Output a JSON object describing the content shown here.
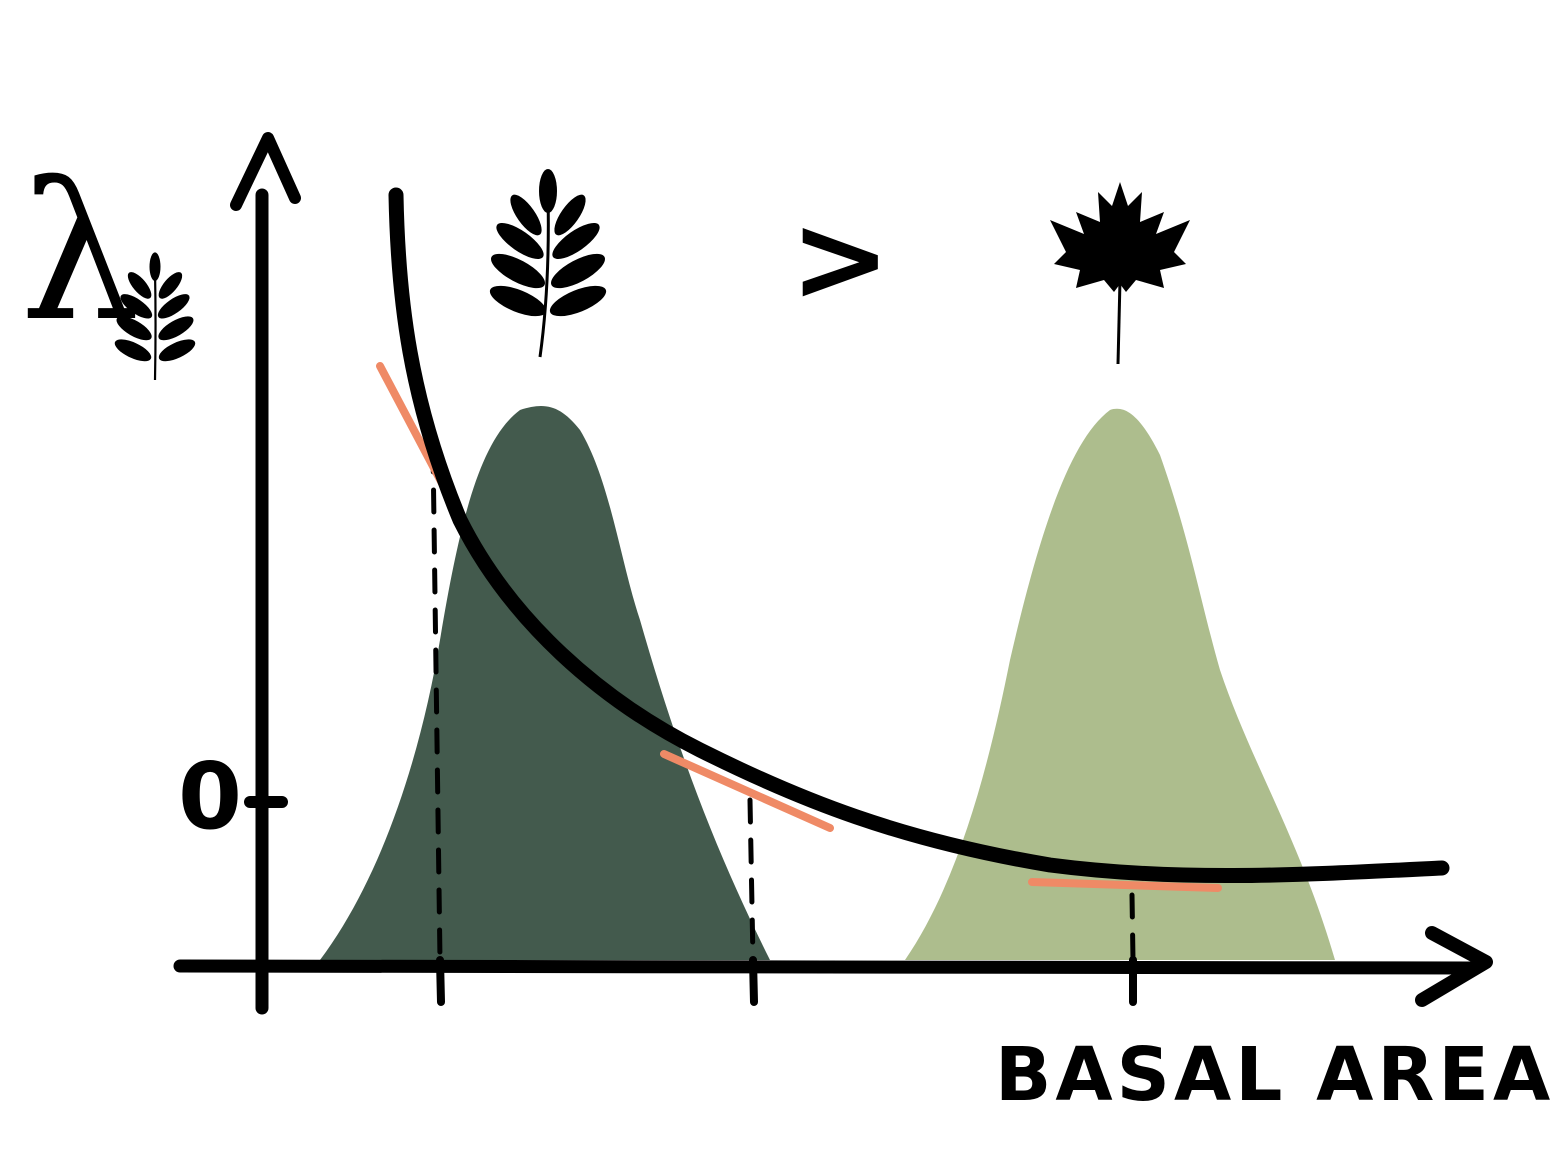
{
  "diagram": {
    "y_symbol": "λ",
    "y_zero_label": "0",
    "comparison_symbol": ">",
    "x_label": "BASAL AREA",
    "colors": {
      "ink": "#000000",
      "ash_distribution": "#435a4d",
      "maple_distribution": "#adbd8d",
      "tangent": "#ef8a66"
    },
    "icons": {
      "y_label_leaf": "compound-leaf-icon",
      "left_species": "compound-leaf-icon",
      "right_species": "maple-leaf-icon"
    },
    "distributions": [
      {
        "species": "compound-leaf-icon",
        "color": "#435a4d"
      },
      {
        "species": "maple-leaf-icon",
        "color": "#adbd8d"
      }
    ]
  }
}
